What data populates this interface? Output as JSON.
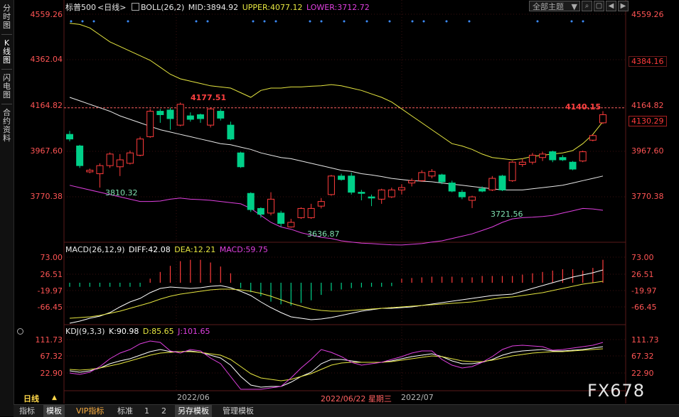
{
  "sidebar": {
    "tabs": [
      "分时图",
      "K线图",
      "闪电图",
      "合约资料"
    ]
  },
  "main_panel": {
    "symbol": "标普500",
    "period": "<日线>",
    "boll": {
      "name": "BOLL(26,2)",
      "mid": "MID:3894.92",
      "upper": "UPPER:4077.12",
      "lower": "LOWER:3712.72"
    },
    "theme_button": "全部主题",
    "y_ticks_left": [
      "4559.26",
      "4362.04",
      "4164.82",
      "3967.60",
      "3770.38"
    ],
    "y_ticks_right": [
      "4559.26",
      "4384.16",
      "4164.82",
      "4130.29",
      "3967.60",
      "3770.38"
    ],
    "annotations": {
      "high1": "4177.51",
      "low1": "3810.32",
      "low2": "3636.87",
      "low3": "3721.56",
      "high2": "4140.15"
    }
  },
  "macd_panel": {
    "title": "MACD(26,12,9)",
    "diff": "DIFF:42.08",
    "dea": "DEA:12.21",
    "macd": "MACD:59.75",
    "y_ticks": [
      "73.00",
      "26.51",
      "-19.97",
      "-66.45"
    ]
  },
  "kdj_panel": {
    "title": "KDJ(9,3,3)",
    "k": "K:90.98",
    "d": "D:85.65",
    "j": "J:101.65",
    "y_ticks": [
      "111.73",
      "67.32",
      "22.90"
    ]
  },
  "date_axis": {
    "period_label": "日线",
    "labels": [
      "2022/06",
      "2022/06/22 星期三",
      "2022/07"
    ]
  },
  "bottom_tabs": [
    "指标",
    "模板",
    "VIP指标",
    "标准",
    "1",
    "2",
    "另存模板",
    "管理模板"
  ],
  "watermark": "FX678",
  "colors": {
    "up": "#ff3c3c",
    "down": "#00d089",
    "boll_mid": "#e8e8e8",
    "boll_upper": "#e6e640",
    "boll_lower": "#e040e0",
    "dea": "#e6e640",
    "diff": "#ffffff",
    "k": "#ffffff",
    "d": "#e6e640",
    "j": "#e040e0",
    "price_line": "#ff6060"
  },
  "chart_data": {
    "type": "candlestick",
    "ylim": [
      3636.87,
      4559.26
    ],
    "candles": [
      {
        "o": 4040,
        "c": 4020,
        "h": 4055,
        "l": 4010
      },
      {
        "o": 3990,
        "c": 3905,
        "h": 3995,
        "l": 3895
      },
      {
        "o": 3878,
        "c": 3885,
        "h": 3892,
        "l": 3872
      },
      {
        "o": 3870,
        "c": 3905,
        "h": 3915,
        "l": 3810
      },
      {
        "o": 3905,
        "c": 3955,
        "h": 3962,
        "l": 3895
      },
      {
        "o": 3900,
        "c": 3930,
        "h": 3955,
        "l": 3860
      },
      {
        "o": 3915,
        "c": 3960,
        "h": 3970,
        "l": 3910
      },
      {
        "o": 3950,
        "c": 4020,
        "h": 4030,
        "l": 3945
      },
      {
        "o": 4030,
        "c": 4140,
        "h": 4150,
        "l": 4025
      },
      {
        "o": 4140,
        "c": 4125,
        "h": 4150,
        "l": 4090
      },
      {
        "o": 4145,
        "c": 4108,
        "h": 4155,
        "l": 4060
      },
      {
        "o": 4080,
        "c": 4170,
        "h": 4177.51,
        "l": 4075
      },
      {
        "o": 4120,
        "c": 4105,
        "h": 4135,
        "l": 4095
      },
      {
        "o": 4125,
        "c": 4108,
        "h": 4130,
        "l": 4090
      },
      {
        "o": 4080,
        "c": 4150,
        "h": 4155,
        "l": 4070
      },
      {
        "o": 4140,
        "c": 4110,
        "h": 4150,
        "l": 4100
      },
      {
        "o": 4080,
        "c": 4020,
        "h": 4095,
        "l": 4015
      },
      {
        "o": 3960,
        "c": 3900,
        "h": 3965,
        "l": 3895
      },
      {
        "o": 3785,
        "c": 3715,
        "h": 3790,
        "l": 3705
      },
      {
        "o": 3720,
        "c": 3695,
        "h": 3725,
        "l": 3680
      },
      {
        "o": 3700,
        "c": 3760,
        "h": 3790,
        "l": 3690
      },
      {
        "o": 3700,
        "c": 3655,
        "h": 3710,
        "l": 3640
      },
      {
        "o": 3640,
        "c": 3660,
        "h": 3675,
        "l": 3636.87
      },
      {
        "o": 3680,
        "c": 3720,
        "h": 3725,
        "l": 3675
      },
      {
        "o": 3680,
        "c": 3720,
        "h": 3740,
        "l": 3675
      },
      {
        "o": 3730,
        "c": 3750,
        "h": 3765,
        "l": 3720
      },
      {
        "o": 3780,
        "c": 3860,
        "h": 3865,
        "l": 3775
      },
      {
        "o": 3860,
        "c": 3845,
        "h": 3870,
        "l": 3840
      },
      {
        "o": 3860,
        "c": 3790,
        "h": 3875,
        "l": 3780
      },
      {
        "o": 3790,
        "c": 3785,
        "h": 3800,
        "l": 3755
      },
      {
        "o": 3770,
        "c": 3765,
        "h": 3780,
        "l": 3730
      },
      {
        "o": 3760,
        "c": 3800,
        "h": 3805,
        "l": 3740
      },
      {
        "o": 3770,
        "c": 3800,
        "h": 3810,
        "l": 3765
      },
      {
        "o": 3800,
        "c": 3810,
        "h": 3825,
        "l": 3780
      },
      {
        "o": 3830,
        "c": 3840,
        "h": 3850,
        "l": 3815
      },
      {
        "o": 3840,
        "c": 3875,
        "h": 3885,
        "l": 3835
      },
      {
        "o": 3860,
        "c": 3880,
        "h": 3890,
        "l": 3850
      },
      {
        "o": 3865,
        "c": 3835,
        "h": 3870,
        "l": 3825
      },
      {
        "o": 3830,
        "c": 3795,
        "h": 3840,
        "l": 3790
      },
      {
        "o": 3790,
        "c": 3770,
        "h": 3800,
        "l": 3760
      },
      {
        "o": 3755,
        "c": 3770,
        "h": 3775,
        "l": 3721.56
      },
      {
        "o": 3805,
        "c": 3795,
        "h": 3815,
        "l": 3790
      },
      {
        "o": 3800,
        "c": 3850,
        "h": 3860,
        "l": 3795
      },
      {
        "o": 3860,
        "c": 3800,
        "h": 3865,
        "l": 3795
      },
      {
        "o": 3840,
        "c": 3920,
        "h": 3925,
        "l": 3835
      },
      {
        "o": 3910,
        "c": 3920,
        "h": 3935,
        "l": 3900
      },
      {
        "o": 3920,
        "c": 3950,
        "h": 3960,
        "l": 3910
      },
      {
        "o": 3940,
        "c": 3955,
        "h": 3965,
        "l": 3925
      },
      {
        "o": 3965,
        "c": 3930,
        "h": 3970,
        "l": 3920
      },
      {
        "o": 3940,
        "c": 3930,
        "h": 3950,
        "l": 3925
      },
      {
        "o": 3920,
        "c": 3890,
        "h": 3925,
        "l": 3885
      },
      {
        "o": 3925,
        "c": 3965,
        "h": 3970,
        "l": 3920
      },
      {
        "o": 4015,
        "c": 4035,
        "h": 4040,
        "l": 4010
      },
      {
        "o": 4090,
        "c": 4125,
        "h": 4140.15,
        "l": 4085
      }
    ]
  }
}
